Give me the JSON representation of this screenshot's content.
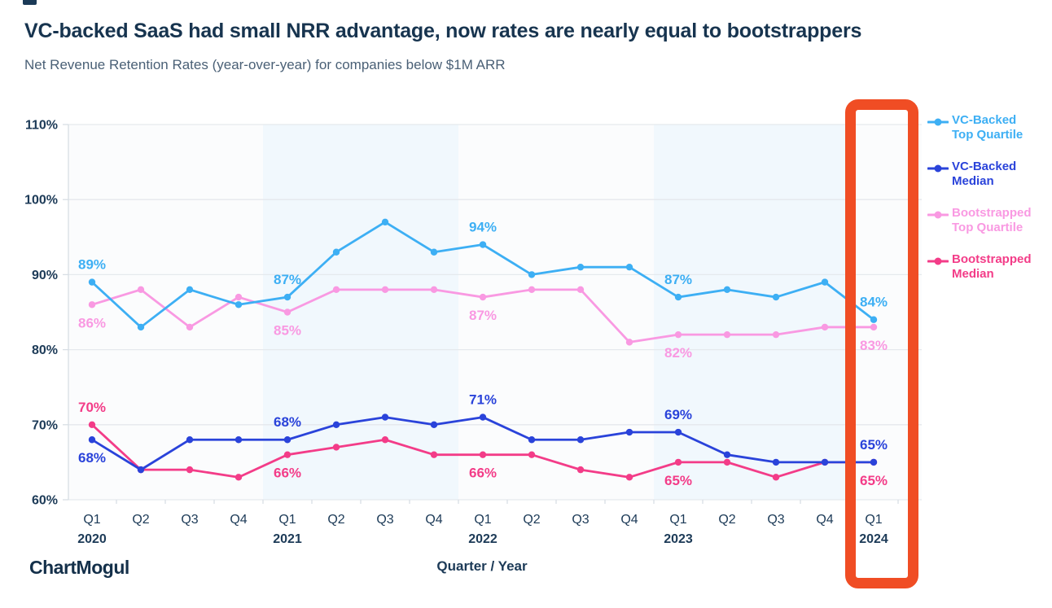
{
  "page": {
    "title": "VC-backed SaaS had small NRR advantage, now rates are nearly equal to bootstrappers",
    "subtitle": "Net Revenue Retention Rates (year-over-year) for companies below $1M ARR"
  },
  "footer": {
    "logo_text": "ChartMogul",
    "x_axis_title": "Quarter / Year"
  },
  "highlighted_quarter": "Q1 2024",
  "colors": {
    "title": "#17344f",
    "subtitle": "#4a6076",
    "axis_text": "#1c3a57",
    "axis_line": "#d8dee4",
    "gridline": "#e5e9ed",
    "plot_bg": "#fbfcfd",
    "band": "#f1f8fd",
    "highlight_box": "#f04d24",
    "vc_top": "#3daff4",
    "vc_median": "#2a43da",
    "boot_top": "#f999e2",
    "boot_median": "#f33c88"
  },
  "legend": {
    "items": [
      {
        "line1": "VC-Backed",
        "line2": "Top Quartile",
        "color_key": "vc_top"
      },
      {
        "line1": "VC-Backed",
        "line2": "Median",
        "color_key": "vc_median"
      },
      {
        "line1": "Bootstrapped",
        "line2": "Top Quartile",
        "color_key": "boot_top"
      },
      {
        "line1": "Bootstrapped",
        "line2": "Median",
        "color_key": "boot_median"
      }
    ]
  },
  "chart_data": {
    "type": "line",
    "x_categories": [
      "Q1",
      "Q2",
      "Q3",
      "Q4",
      "Q1",
      "Q2",
      "Q3",
      "Q4",
      "Q1",
      "Q2",
      "Q3",
      "Q4",
      "Q1",
      "Q2",
      "Q3",
      "Q4",
      "Q1"
    ],
    "x_years": [
      {
        "label": "2020",
        "index": 0
      },
      {
        "label": "2021",
        "index": 4
      },
      {
        "label": "2022",
        "index": 8
      },
      {
        "label": "2023",
        "index": 12
      },
      {
        "label": "2024",
        "index": 16
      }
    ],
    "xlabel": "Quarter / Year",
    "ylabel": "Net Revenue Retention Rate",
    "ylim": [
      60,
      110
    ],
    "ytick_step": 10,
    "grid": true,
    "legend_position": "right",
    "bands": [
      [
        3.5,
        7.5
      ],
      [
        11.5,
        15.5
      ]
    ],
    "draw_order": [
      2,
      0,
      3,
      1
    ],
    "series": [
      {
        "name": "VC-Backed Top Quartile",
        "slug": "vc-backed-top-quartile",
        "color_key": "vc_top",
        "values": [
          89,
          83,
          88,
          86,
          87,
          93,
          97,
          93,
          94,
          90,
          91,
          91,
          87,
          88,
          87,
          89,
          84
        ],
        "labels": [
          {
            "index": 0,
            "text": "89%",
            "position": "above"
          },
          {
            "index": 4,
            "text": "87%",
            "position": "above"
          },
          {
            "index": 8,
            "text": "94%",
            "position": "above"
          },
          {
            "index": 12,
            "text": "87%",
            "position": "above"
          },
          {
            "index": 16,
            "text": "84%",
            "position": "above"
          }
        ]
      },
      {
        "name": "VC-Backed Median",
        "slug": "vc-backed-median",
        "color_key": "vc_median",
        "values": [
          68,
          64,
          68,
          68,
          68,
          70,
          71,
          70,
          71,
          68,
          68,
          69,
          69,
          66,
          65,
          65,
          65
        ],
        "labels": [
          {
            "index": 0,
            "text": "68%",
            "position": "below"
          },
          {
            "index": 4,
            "text": "68%",
            "position": "above"
          },
          {
            "index": 8,
            "text": "71%",
            "position": "above"
          },
          {
            "index": 12,
            "text": "69%",
            "position": "above"
          },
          {
            "index": 16,
            "text": "65%",
            "position": "above"
          }
        ]
      },
      {
        "name": "Bootstrapped Top Quartile",
        "slug": "bootstrapped-top-quartile",
        "color_key": "boot_top",
        "values": [
          86,
          88,
          83,
          87,
          85,
          88,
          88,
          88,
          87,
          88,
          88,
          81,
          82,
          82,
          82,
          83,
          83
        ],
        "labels": [
          {
            "index": 0,
            "text": "86%",
            "position": "below"
          },
          {
            "index": 4,
            "text": "85%",
            "position": "below"
          },
          {
            "index": 8,
            "text": "87%",
            "position": "below"
          },
          {
            "index": 12,
            "text": "82%",
            "position": "below"
          },
          {
            "index": 16,
            "text": "83%",
            "position": "below"
          }
        ]
      },
      {
        "name": "Bootstrapped Median",
        "slug": "bootstrapped-median",
        "color_key": "boot_median",
        "values": [
          70,
          64,
          64,
          63,
          66,
          67,
          68,
          66,
          66,
          66,
          64,
          63,
          65,
          65,
          63,
          65,
          65
        ],
        "labels": [
          {
            "index": 0,
            "text": "70%",
            "position": "above"
          },
          {
            "index": 4,
            "text": "66%",
            "position": "below"
          },
          {
            "index": 8,
            "text": "66%",
            "position": "below"
          },
          {
            "index": 12,
            "text": "65%",
            "position": "below"
          },
          {
            "index": 16,
            "text": "65%",
            "position": "below"
          }
        ]
      }
    ]
  }
}
